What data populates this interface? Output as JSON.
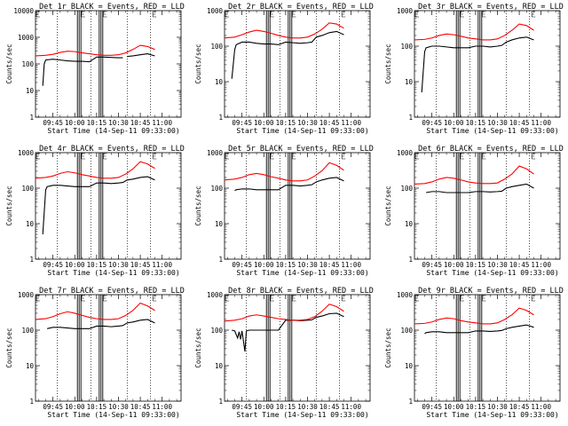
{
  "chart_data": [
    {
      "type": "line",
      "title": "Det 1r BLACK = Events, RED = LLD",
      "ylabel": "Counts/sec",
      "xlabel": "Start Time (14-Sep-11 09:33:00)",
      "yscale": "log",
      "ylim": [
        1,
        10000
      ],
      "xlim": [
        "09:33",
        "11:13"
      ],
      "xticks": [
        "09:45",
        "10:00",
        "10:15",
        "10:30",
        "10:45",
        "11:00"
      ],
      "yticks": [
        "1",
        "10",
        "100",
        "1000",
        "10000"
      ],
      "series": [
        {
          "name": "Events",
          "color": "#000000",
          "x": [
            "09:35",
            "09:38",
            "09:39",
            "09:40",
            "09:45",
            "09:50",
            "09:55",
            "10:00",
            "10:05",
            "10:10",
            "10:15",
            "10:20",
            "10:25",
            "10:30",
            "10:33",
            "10:35",
            "10:36",
            "10:40",
            "10:45",
            "10:50",
            "10:55"
          ],
          "y": [
            null,
            15,
            100,
            140,
            150,
            140,
            130,
            125,
            125,
            120,
            180,
            180,
            175,
            170,
            170,
            null,
            190,
            200,
            220,
            240,
            200
          ]
        },
        {
          "name": "LLD",
          "color": "#ff0000",
          "x": [
            "09:33",
            "09:40",
            "09:45",
            "09:50",
            "09:55",
            "10:00",
            "10:05",
            "10:10",
            "10:15",
            "10:20",
            "10:25",
            "10:30",
            "10:35",
            "10:40",
            "10:45",
            "10:50",
            "10:55"
          ],
          "y": [
            200,
            210,
            230,
            270,
            300,
            290,
            260,
            240,
            220,
            210,
            210,
            220,
            260,
            350,
            500,
            450,
            350
          ]
        }
      ]
    },
    {
      "type": "line",
      "title": "Det 2r BLACK = Events, RED = LLD",
      "ylabel": "Counts/sec",
      "xlabel": "Start Time (14-Sep-11 09:33:00)",
      "yscale": "log",
      "ylim": [
        1,
        1000
      ],
      "xlim": [
        "09:33",
        "11:13"
      ],
      "xticks": [
        "09:45",
        "10:00",
        "10:15",
        "10:30",
        "10:45",
        "11:00"
      ],
      "yticks": [
        "1",
        "10",
        "100",
        "1000"
      ],
      "series": [
        {
          "name": "Events",
          "color": "#000000",
          "x": [
            "09:38",
            "09:40",
            "09:41",
            "09:45",
            "09:50",
            "09:55",
            "10:00",
            "10:05",
            "10:10",
            "10:15",
            "10:20",
            "10:25",
            "10:30",
            "10:33",
            "10:36",
            "10:40",
            "10:45",
            "10:50",
            "10:55"
          ],
          "y": [
            12,
            80,
            110,
            130,
            130,
            120,
            115,
            115,
            110,
            130,
            125,
            120,
            125,
            130,
            180,
            200,
            240,
            260,
            210
          ]
        },
        {
          "name": "LLD",
          "color": "#ff0000",
          "x": [
            "09:33",
            "09:40",
            "09:45",
            "09:50",
            "09:55",
            "10:00",
            "10:05",
            "10:10",
            "10:15",
            "10:20",
            "10:25",
            "10:30",
            "10:35",
            "10:40",
            "10:45",
            "10:50",
            "10:55"
          ],
          "y": [
            170,
            180,
            210,
            250,
            280,
            260,
            230,
            200,
            180,
            170,
            170,
            180,
            220,
            300,
            450,
            420,
            320
          ]
        }
      ]
    },
    {
      "type": "line",
      "title": "Det 3r BLACK = Events, RED = LLD",
      "ylabel": "Counts/sec",
      "xlabel": "Start Time (14-Sep-11 09:33:00)",
      "yscale": "log",
      "ylim": [
        1,
        1000
      ],
      "xlim": [
        "09:33",
        "11:13"
      ],
      "xticks": [
        "09:45",
        "10:00",
        "10:15",
        "10:30",
        "10:45",
        "11:00"
      ],
      "yticks": [
        "1",
        "10",
        "100",
        "1000"
      ],
      "series": [
        {
          "name": "Events",
          "color": "#000000",
          "x": [
            "09:38",
            "09:40",
            "09:41",
            "09:45",
            "09:50",
            "09:55",
            "10:00",
            "10:05",
            "10:10",
            "10:15",
            "10:20",
            "10:25",
            "10:30",
            "10:33",
            "10:36",
            "10:40",
            "10:45",
            "10:50",
            "10:55"
          ],
          "y": [
            5,
            70,
            90,
            100,
            100,
            95,
            90,
            90,
            90,
            100,
            100,
            95,
            100,
            105,
            130,
            150,
            170,
            180,
            150
          ]
        },
        {
          "name": "LLD",
          "color": "#ff0000",
          "x": [
            "09:33",
            "09:40",
            "09:45",
            "09:50",
            "09:55",
            "10:00",
            "10:05",
            "10:10",
            "10:15",
            "10:20",
            "10:25",
            "10:30",
            "10:35",
            "10:40",
            "10:45",
            "10:50",
            "10:55"
          ],
          "y": [
            150,
            155,
            170,
            200,
            220,
            210,
            190,
            170,
            160,
            150,
            150,
            160,
            200,
            280,
            420,
            380,
            280
          ]
        }
      ]
    },
    {
      "type": "line",
      "title": "Det 4r BLACK = Events, RED = LLD",
      "ylabel": "Counts/sec",
      "xlabel": "Start Time (14-Sep-11 09:33:00)",
      "yscale": "log",
      "ylim": [
        1,
        1000
      ],
      "xlim": [
        "09:33",
        "11:13"
      ],
      "xticks": [
        "09:45",
        "10:00",
        "10:15",
        "10:30",
        "10:45",
        "11:00"
      ],
      "yticks": [
        "1",
        "10",
        "100",
        "1000"
      ],
      "series": [
        {
          "name": "Events",
          "color": "#000000",
          "x": [
            "09:38",
            "09:40",
            "09:41",
            "09:45",
            "09:50",
            "09:55",
            "10:00",
            "10:05",
            "10:10",
            "10:15",
            "10:20",
            "10:25",
            "10:30",
            "10:33",
            "10:36",
            "10:40",
            "10:45",
            "10:50",
            "10:55"
          ],
          "y": [
            5,
            90,
            110,
            120,
            120,
            115,
            110,
            110,
            110,
            140,
            140,
            135,
            140,
            145,
            170,
            180,
            200,
            210,
            170
          ]
        },
        {
          "name": "LLD",
          "color": "#ff0000",
          "x": [
            "09:33",
            "09:40",
            "09:45",
            "09:50",
            "09:55",
            "10:00",
            "10:05",
            "10:10",
            "10:15",
            "10:20",
            "10:25",
            "10:30",
            "10:35",
            "10:40",
            "10:45",
            "10:50",
            "10:55"
          ],
          "y": [
            190,
            200,
            220,
            260,
            290,
            270,
            240,
            220,
            200,
            190,
            190,
            200,
            250,
            350,
            560,
            480,
            360
          ]
        }
      ]
    },
    {
      "type": "line",
      "title": "Det 5r BLACK = Events, RED = LLD",
      "ylabel": "Counts/sec",
      "xlabel": "Start Time (14-Sep-11 09:33:00)",
      "yscale": "log",
      "ylim": [
        1,
        1000
      ],
      "xlim": [
        "09:33",
        "11:13"
      ],
      "xticks": [
        "09:45",
        "10:00",
        "10:15",
        "10:30",
        "10:45",
        "11:00"
      ],
      "yticks": [
        "1",
        "10",
        "100",
        "1000"
      ],
      "series": [
        {
          "name": "Events",
          "color": "#000000",
          "x": [
            "09:40",
            "09:41",
            "09:45",
            "09:50",
            "09:55",
            "10:00",
            "10:05",
            "10:10",
            "10:15",
            "10:20",
            "10:25",
            "10:30",
            "10:33",
            "10:36",
            "10:40",
            "10:45",
            "10:50",
            "10:55"
          ],
          "y": [
            85,
            90,
            95,
            95,
            90,
            90,
            90,
            90,
            120,
            120,
            115,
            120,
            125,
            150,
            170,
            190,
            200,
            160
          ]
        },
        {
          "name": "LLD",
          "color": "#ff0000",
          "x": [
            "09:33",
            "09:40",
            "09:45",
            "09:50",
            "09:55",
            "10:00",
            "10:05",
            "10:10",
            "10:15",
            "10:20",
            "10:25",
            "10:30",
            "10:35",
            "10:40",
            "10:45",
            "10:50",
            "10:55"
          ],
          "y": [
            170,
            180,
            200,
            240,
            260,
            240,
            210,
            190,
            170,
            160,
            160,
            170,
            220,
            310,
            520,
            440,
            320
          ]
        }
      ]
    },
    {
      "type": "line",
      "title": "Det 6r BLACK = Events, RED = LLD",
      "ylabel": "Counts/sec",
      "xlabel": "Start Time (14-Sep-11 09:33:00)",
      "yscale": "log",
      "ylim": [
        1,
        1000
      ],
      "xlim": [
        "09:33",
        "11:13"
      ],
      "xticks": [
        "09:45",
        "10:00",
        "10:15",
        "10:30",
        "10:45",
        "11:00"
      ],
      "yticks": [
        "1",
        "10",
        "100",
        "1000"
      ],
      "series": [
        {
          "name": "Events",
          "color": "#000000",
          "x": [
            "09:41",
            "09:45",
            "09:50",
            "09:55",
            "10:00",
            "10:05",
            "10:10",
            "10:15",
            "10:20",
            "10:25",
            "10:30",
            "10:33",
            "10:36",
            "10:40",
            "10:45",
            "10:50",
            "10:55"
          ],
          "y": [
            75,
            80,
            80,
            75,
            75,
            75,
            75,
            80,
            80,
            78,
            80,
            82,
            100,
            110,
            120,
            130,
            100
          ]
        },
        {
          "name": "LLD",
          "color": "#ff0000",
          "x": [
            "09:33",
            "09:40",
            "09:45",
            "09:50",
            "09:55",
            "10:00",
            "10:05",
            "10:10",
            "10:15",
            "10:20",
            "10:25",
            "10:30",
            "10:35",
            "10:40",
            "10:45",
            "10:50",
            "10:55"
          ],
          "y": [
            130,
            135,
            150,
            180,
            200,
            190,
            170,
            150,
            140,
            135,
            135,
            140,
            180,
            250,
            420,
            350,
            250
          ]
        }
      ]
    },
    {
      "type": "line",
      "title": "Det 7r BLACK = Events, RED = LLD",
      "ylabel": "Counts/sec",
      "xlabel": "Start Time (14-Sep-11 09:33:00)",
      "yscale": "log",
      "ylim": [
        1,
        1000
      ],
      "xlim": [
        "09:33",
        "11:13"
      ],
      "xticks": [
        "09:45",
        "10:00",
        "10:15",
        "10:30",
        "10:45",
        "11:00"
      ],
      "yticks": [
        "1",
        "10",
        "100",
        "1000"
      ],
      "series": [
        {
          "name": "Events",
          "color": "#000000",
          "x": [
            "09:41",
            "09:45",
            "09:50",
            "09:55",
            "10:00",
            "10:05",
            "10:10",
            "10:15",
            "10:20",
            "10:25",
            "10:30",
            "10:33",
            "10:36",
            "10:40",
            "10:45",
            "10:50",
            "10:55"
          ],
          "y": [
            110,
            120,
            120,
            115,
            110,
            110,
            110,
            130,
            130,
            125,
            130,
            135,
            160,
            170,
            190,
            200,
            160
          ]
        },
        {
          "name": "LLD",
          "color": "#ff0000",
          "x": [
            "09:33",
            "09:40",
            "09:45",
            "09:50",
            "09:55",
            "10:00",
            "10:05",
            "10:10",
            "10:15",
            "10:20",
            "10:25",
            "10:30",
            "10:35",
            "10:40",
            "10:45",
            "10:50",
            "10:55"
          ],
          "y": [
            200,
            210,
            240,
            290,
            330,
            300,
            260,
            230,
            210,
            200,
            200,
            210,
            260,
            360,
            580,
            480,
            360
          ]
        }
      ]
    },
    {
      "type": "line",
      "title": "Det 8r BLACK = Events, RED = LLD",
      "ylabel": "Counts/sec",
      "xlabel": "Start Time (14-Sep-11 09:33:00)",
      "yscale": "log",
      "ylim": [
        1,
        1000
      ],
      "xlim": [
        "09:33",
        "11:13"
      ],
      "xticks": [
        "09:45",
        "10:00",
        "10:15",
        "10:30",
        "10:45",
        "11:00"
      ],
      "yticks": [
        "1",
        "10",
        "100",
        "1000"
      ],
      "series": [
        {
          "name": "Events",
          "color": "#000000",
          "x": [
            "09:38",
            "09:40",
            "09:42",
            "09:43",
            "09:44",
            "09:45",
            "09:47",
            "09:48",
            "09:50",
            "09:55",
            "10:00",
            "10:05",
            "10:10",
            "10:15",
            "10:20",
            "10:25",
            "10:30",
            "10:33",
            "10:36",
            "10:40",
            "10:45",
            "10:50",
            "10:55"
          ],
          "y": [
            100,
            95,
            60,
            90,
            55,
            95,
            25,
            95,
            100,
            100,
            100,
            100,
            100,
            190,
            190,
            185,
            190,
            195,
            230,
            250,
            290,
            300,
            240
          ]
        },
        {
          "name": "LLD",
          "color": "#ff0000",
          "x": [
            "09:33",
            "09:40",
            "09:45",
            "09:50",
            "09:55",
            "10:00",
            "10:05",
            "10:10",
            "10:15",
            "10:20",
            "10:25",
            "10:30",
            "10:35",
            "10:40",
            "10:45",
            "10:50",
            "10:55"
          ],
          "y": [
            180,
            190,
            210,
            250,
            270,
            250,
            230,
            210,
            200,
            190,
            190,
            200,
            240,
            340,
            540,
            460,
            340
          ]
        }
      ]
    },
    {
      "type": "line",
      "title": "Det 9r BLACK = Events, RED = LLD",
      "ylabel": "Counts/sec",
      "xlabel": "Start Time (14-Sep-11 09:33:00)",
      "yscale": "log",
      "ylim": [
        1,
        1000
      ],
      "xlim": [
        "09:33",
        "11:13"
      ],
      "xticks": [
        "09:45",
        "10:00",
        "10:15",
        "10:30",
        "10:45",
        "11:00"
      ],
      "yticks": [
        "1",
        "10",
        "100",
        "1000"
      ],
      "series": [
        {
          "name": "Events",
          "color": "#000000",
          "x": [
            "09:40",
            "09:41",
            "09:45",
            "09:50",
            "09:55",
            "10:00",
            "10:05",
            "10:10",
            "10:15",
            "10:20",
            "10:25",
            "10:30",
            "10:33",
            "10:36",
            "10:40",
            "10:45",
            "10:50",
            "10:55"
          ],
          "y": [
            80,
            85,
            90,
            90,
            85,
            85,
            85,
            85,
            95,
            95,
            92,
            95,
            98,
            110,
            120,
            130,
            140,
            120
          ]
        },
        {
          "name": "LLD",
          "color": "#ff0000",
          "x": [
            "09:33",
            "09:40",
            "09:45",
            "09:50",
            "09:55",
            "10:00",
            "10:05",
            "10:10",
            "10:15",
            "10:20",
            "10:25",
            "10:30",
            "10:35",
            "10:40",
            "10:45",
            "10:50",
            "10:55"
          ],
          "y": [
            150,
            155,
            170,
            200,
            220,
            210,
            185,
            170,
            160,
            150,
            150,
            160,
            200,
            270,
            420,
            360,
            270
          ]
        }
      ]
    }
  ]
}
